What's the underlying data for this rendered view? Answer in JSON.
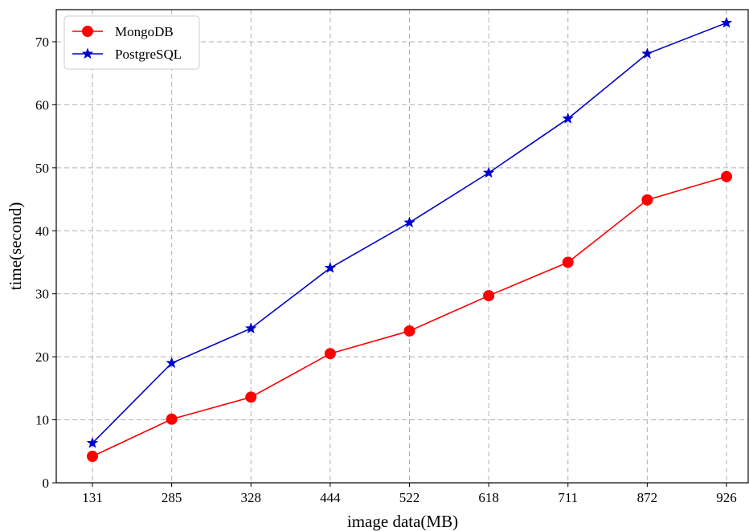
{
  "chart_data": {
    "type": "line",
    "categories": [
      "131",
      "285",
      "328",
      "444",
      "522",
      "618",
      "711",
      "872",
      "926"
    ],
    "series": [
      {
        "name": "MongoDB",
        "values": [
          4.2,
          10.1,
          13.6,
          20.5,
          24.1,
          29.7,
          35.0,
          44.9,
          48.6
        ],
        "color": "#ff0000",
        "marker": "circle"
      },
      {
        "name": "PostgreSQL",
        "values": [
          6.3,
          19.0,
          24.5,
          34.1,
          41.3,
          49.2,
          57.8,
          68.1,
          73.0
        ],
        "color": "#0000cc",
        "marker": "star"
      }
    ],
    "xlabel": "image data(MB)",
    "ylabel": "time(second)",
    "ylim": [
      0,
      75
    ],
    "yticks": [
      0,
      10,
      20,
      30,
      40,
      50,
      60,
      70
    ],
    "grid": true,
    "legend_position": "top-left"
  }
}
